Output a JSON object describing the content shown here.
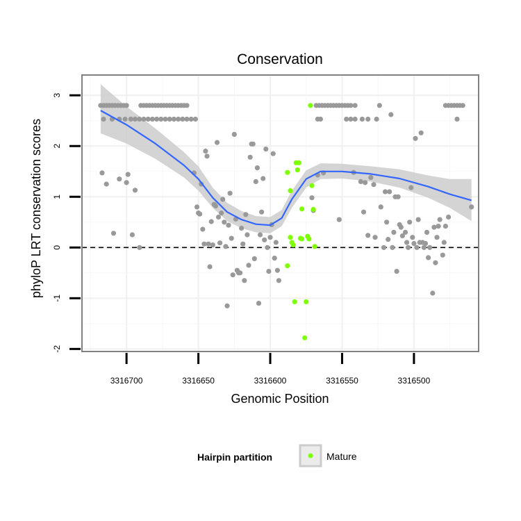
{
  "chart_data": {
    "type": "scatter",
    "title": "Conservation",
    "xlabel": "Genomic Position",
    "ylabel": "phyloP LRT conservation scores",
    "x_reversed": true,
    "xlim": [
      3316731,
      3316455
    ],
    "ylim": [
      -2.05,
      3.4
    ],
    "x_ticks": [
      3316700,
      3316650,
      3316600,
      3316550,
      3316500
    ],
    "x_tick_labels": [
      "3316700",
      "3316650",
      "3316600",
      "3316550",
      "3316500"
    ],
    "y_ticks": [
      -2,
      -1,
      0,
      1,
      2,
      3
    ],
    "y_tick_labels": [
      "-2",
      "-1",
      "0",
      "1",
      "2",
      "3"
    ],
    "reference_line": {
      "y": 0,
      "style": "dashed"
    },
    "grid": true,
    "colors": {
      "other": "#999999",
      "mature": "#7fff00",
      "smooth": "#3366ff",
      "band": "#cccccc"
    },
    "legend": {
      "title": "Hairpin partition",
      "entries": [
        "Mature"
      ],
      "position": "bottom"
    },
    "series": [
      {
        "name": "",
        "color": "#999999",
        "points": [
          [
            3316718,
            2.8
          ],
          [
            3316716,
            2.8
          ],
          [
            3316714,
            2.8
          ],
          [
            3316712,
            2.8
          ],
          [
            3316710,
            2.8
          ],
          [
            3316708,
            2.8
          ],
          [
            3316706,
            2.8
          ],
          [
            3316704,
            2.8
          ],
          [
            3316702,
            2.8
          ],
          [
            3316700,
            2.8
          ],
          [
            3316690,
            2.8
          ],
          [
            3316688,
            2.8
          ],
          [
            3316686,
            2.8
          ],
          [
            3316684,
            2.8
          ],
          [
            3316682,
            2.8
          ],
          [
            3316680,
            2.8
          ],
          [
            3316678,
            2.8
          ],
          [
            3316676,
            2.8
          ],
          [
            3316674,
            2.8
          ],
          [
            3316672,
            2.8
          ],
          [
            3316670,
            2.8
          ],
          [
            3316668,
            2.8
          ],
          [
            3316666,
            2.8
          ],
          [
            3316664,
            2.8
          ],
          [
            3316662,
            2.8
          ],
          [
            3316660,
            2.8
          ],
          [
            3316658,
            2.8
          ],
          [
            3316716,
            2.53
          ],
          [
            3316710,
            2.53
          ],
          [
            3316705,
            2.53
          ],
          [
            3316701,
            2.53
          ],
          [
            3316697,
            2.53
          ],
          [
            3316694,
            2.53
          ],
          [
            3316691,
            2.53
          ],
          [
            3316688,
            2.53
          ],
          [
            3316685,
            2.53
          ],
          [
            3316682,
            2.53
          ],
          [
            3316679,
            2.53
          ],
          [
            3316676,
            2.53
          ],
          [
            3316673,
            2.53
          ],
          [
            3316670,
            2.53
          ],
          [
            3316667,
            2.53
          ],
          [
            3316664,
            2.53
          ],
          [
            3316661,
            2.53
          ],
          [
            3316658,
            2.53
          ],
          [
            3316655,
            2.53
          ],
          [
            3316652,
            2.53
          ],
          [
            3316717,
            1.47
          ],
          [
            3316714,
            1.25
          ],
          [
            3316709,
            0.28
          ],
          [
            3316705,
            1.35
          ],
          [
            3316700,
            1.28
          ],
          [
            3316699,
            1.44
          ],
          [
            3316696,
            0.25
          ],
          [
            3316694,
            1.13
          ],
          [
            3316691,
            0.0
          ],
          [
            3316653,
            1.47
          ],
          [
            3316651,
            0.8
          ],
          [
            3316650,
            0.68
          ],
          [
            3316649,
            0.66
          ],
          [
            3316648,
            1.25
          ],
          [
            3316647,
            0.36
          ],
          [
            3316646,
            0.07
          ],
          [
            3316645,
            1.9
          ],
          [
            3316644,
            1.8
          ],
          [
            3316643,
            0.07
          ],
          [
            3316642,
            -0.38
          ],
          [
            3316641,
            0.51
          ],
          [
            3316640,
            0.05
          ],
          [
            3316639,
            0.85
          ],
          [
            3316638,
            0.82
          ],
          [
            3316637,
            2.07
          ],
          [
            3316636,
            0.6
          ],
          [
            3316635,
            0.09
          ],
          [
            3316634,
            0.68
          ],
          [
            3316633,
            0.95
          ],
          [
            3316632,
            0.5
          ],
          [
            3316631,
            0.02
          ],
          [
            3316630,
            -1.15
          ],
          [
            3316629,
            0.44
          ],
          [
            3316628,
            1.07
          ],
          [
            3316627,
            0.18
          ],
          [
            3316626,
            -0.54
          ],
          [
            3316625,
            2.23
          ],
          [
            3316624,
            0.56
          ],
          [
            3316623,
            -0.45
          ],
          [
            3316622,
            -0.5
          ],
          [
            3316621,
            -0.5
          ],
          [
            3316620,
            0.38
          ],
          [
            3316619,
            0.07
          ],
          [
            3316618,
            -0.65
          ],
          [
            3316617,
            0.65
          ],
          [
            3316616,
            0.25
          ],
          [
            3316615,
            -0.35
          ],
          [
            3316614,
            1.78
          ],
          [
            3316613,
            2.04
          ],
          [
            3316612,
            2.04
          ],
          [
            3316611,
            -0.22
          ],
          [
            3316610,
            1.3
          ],
          [
            3316609,
            1.57
          ],
          [
            3316608,
            -1.1
          ],
          [
            3316607,
            0.25
          ],
          [
            3316606,
            0.7
          ],
          [
            3316605,
            1.36
          ],
          [
            3316604,
            0.15
          ],
          [
            3316603,
            1.94
          ],
          [
            3316602,
            0.0
          ],
          [
            3316601,
            -0.47
          ],
          [
            3316600,
            0.2
          ],
          [
            3316599,
            0.45
          ],
          [
            3316598,
            1.85
          ],
          [
            3316597,
            -0.21
          ],
          [
            3316596,
            0.1
          ],
          [
            3316595,
            -0.45
          ],
          [
            3316594,
            -0.65
          ],
          [
            3316568,
            2.8
          ],
          [
            3316566,
            2.8
          ],
          [
            3316564,
            2.8
          ],
          [
            3316562,
            2.8
          ],
          [
            3316560,
            2.8
          ],
          [
            3316558,
            2.8
          ],
          [
            3316556,
            2.8
          ],
          [
            3316554,
            2.8
          ],
          [
            3316552,
            2.8
          ],
          [
            3316550,
            2.8
          ],
          [
            3316548,
            2.8
          ],
          [
            3316546,
            2.8
          ],
          [
            3316544,
            2.8
          ],
          [
            3316541,
            2.8
          ],
          [
            3316524,
            2.8
          ],
          [
            3316478,
            2.8
          ],
          [
            3316476,
            2.8
          ],
          [
            3316474,
            2.8
          ],
          [
            3316472,
            2.8
          ],
          [
            3316470,
            2.8
          ],
          [
            3316468,
            2.8
          ],
          [
            3316466,
            2.8
          ],
          [
            3316567,
            2.53
          ],
          [
            3316565,
            2.53
          ],
          [
            3316547,
            2.53
          ],
          [
            3316544,
            2.53
          ],
          [
            3316541,
            2.53
          ],
          [
            3316536,
            2.53
          ],
          [
            3316532,
            2.53
          ],
          [
            3316526,
            2.53
          ],
          [
            3316470,
            2.53
          ],
          [
            3316571,
            0.98
          ],
          [
            3316570,
            0.73
          ],
          [
            3316567,
            1.43
          ],
          [
            3316563,
            1.47
          ],
          [
            3316552,
            0.55
          ],
          [
            3316542,
            1.48
          ],
          [
            3316537,
            1.3
          ],
          [
            3316535,
            0.7
          ],
          [
            3316534,
            1.28
          ],
          [
            3316532,
            0.24
          ],
          [
            3316530,
            1.38
          ],
          [
            3316528,
            1.24
          ],
          [
            3316527,
            0.2
          ],
          [
            3316523,
            0.8
          ],
          [
            3316521,
            0.0
          ],
          [
            3316520,
            1.1
          ],
          [
            3316519,
            0.5
          ],
          [
            3316518,
            0.16
          ],
          [
            3316517,
            1.1
          ],
          [
            3316516,
            2.62
          ],
          [
            3316515,
            0.0
          ],
          [
            3316514,
            0.3
          ],
          [
            3316513,
            1.0
          ],
          [
            3316512,
            -0.47
          ],
          [
            3316511,
            1.0
          ],
          [
            3316510,
            0.45
          ],
          [
            3316509,
            0.4
          ],
          [
            3316508,
            0.23
          ],
          [
            3316506,
            0.3
          ],
          [
            3316505,
            0.1
          ],
          [
            3316504,
            0.0
          ],
          [
            3316503,
            0.5
          ],
          [
            3316502,
            1.18
          ],
          [
            3316501,
            0.2
          ],
          [
            3316500,
            0.08
          ],
          [
            3316499,
            2.15
          ],
          [
            3316498,
            0.0
          ],
          [
            3316497,
            0.55
          ],
          [
            3316496,
            0.1
          ],
          [
            3316495,
            2.26
          ],
          [
            3316494,
            0.1
          ],
          [
            3316493,
            0.0
          ],
          [
            3316492,
            0.08
          ],
          [
            3316491,
            0.3
          ],
          [
            3316490,
            -0.2
          ],
          [
            3316489,
            0.0
          ],
          [
            3316487,
            -0.9
          ],
          [
            3316486,
            0.4
          ],
          [
            3316485,
            -0.3
          ],
          [
            3316484,
            0.2
          ],
          [
            3316483,
            0.42
          ],
          [
            3316482,
            0.55
          ],
          [
            3316480,
            -0.15
          ],
          [
            3316479,
            0.1
          ],
          [
            3316478,
            0.42
          ],
          [
            3316476,
            0.6
          ],
          [
            3316460,
            0.8
          ]
        ]
      },
      {
        "name": "Mature",
        "color": "#7fff00",
        "points": [
          [
            3316588,
            1.48
          ],
          [
            3316586,
            1.12
          ],
          [
            3316584,
            0.05
          ],
          [
            3316582,
            1.67
          ],
          [
            3316581,
            1.53
          ],
          [
            3316580,
            1.67
          ],
          [
            3316579,
            0.18
          ],
          [
            3316578,
            0.76
          ],
          [
            3316576,
            -1.78
          ],
          [
            3316575,
            -1.07
          ],
          [
            3316574,
            0.22
          ],
          [
            3316573,
            0.17
          ],
          [
            3316572,
            2.8
          ],
          [
            3316571,
            1.22
          ],
          [
            3316570,
            0.75
          ],
          [
            3316569,
            0.02
          ],
          [
            3316588,
            -0.36
          ],
          [
            3316586,
            0.2
          ],
          [
            3316585,
            0.1
          ],
          [
            3316583,
            -1.07
          ],
          [
            3316578,
            0.17
          ]
        ]
      }
    ],
    "smooth_line": [
      [
        3316718,
        2.7
      ],
      [
        3316700,
        2.42
      ],
      [
        3316680,
        2.05
      ],
      [
        3316660,
        1.62
      ],
      [
        3316650,
        1.35
      ],
      [
        3316640,
        0.98
      ],
      [
        3316630,
        0.7
      ],
      [
        3316620,
        0.55
      ],
      [
        3316610,
        0.46
      ],
      [
        3316600,
        0.44
      ],
      [
        3316592,
        0.58
      ],
      [
        3316585,
        0.95
      ],
      [
        3316575,
        1.35
      ],
      [
        3316565,
        1.5
      ],
      [
        3316550,
        1.5
      ],
      [
        3316530,
        1.45
      ],
      [
        3316510,
        1.36
      ],
      [
        3316490,
        1.2
      ],
      [
        3316475,
        1.05
      ],
      [
        3316460,
        0.93
      ]
    ],
    "smooth_band": [
      [
        3316718,
        3.22,
        2.25
      ],
      [
        3316700,
        2.78,
        2.05
      ],
      [
        3316680,
        2.35,
        1.75
      ],
      [
        3316660,
        1.88,
        1.38
      ],
      [
        3316650,
        1.6,
        1.12
      ],
      [
        3316640,
        1.18,
        0.78
      ],
      [
        3316630,
        0.88,
        0.52
      ],
      [
        3316620,
        0.72,
        0.38
      ],
      [
        3316610,
        0.62,
        0.3
      ],
      [
        3316600,
        0.6,
        0.28
      ],
      [
        3316592,
        0.74,
        0.42
      ],
      [
        3316585,
        1.12,
        0.78
      ],
      [
        3316575,
        1.52,
        1.18
      ],
      [
        3316565,
        1.66,
        1.35
      ],
      [
        3316550,
        1.65,
        1.36
      ],
      [
        3316530,
        1.6,
        1.3
      ],
      [
        3316510,
        1.54,
        1.18
      ],
      [
        3316490,
        1.42,
        0.98
      ],
      [
        3316475,
        1.35,
        0.78
      ],
      [
        3316460,
        1.35,
        0.52
      ]
    ]
  }
}
